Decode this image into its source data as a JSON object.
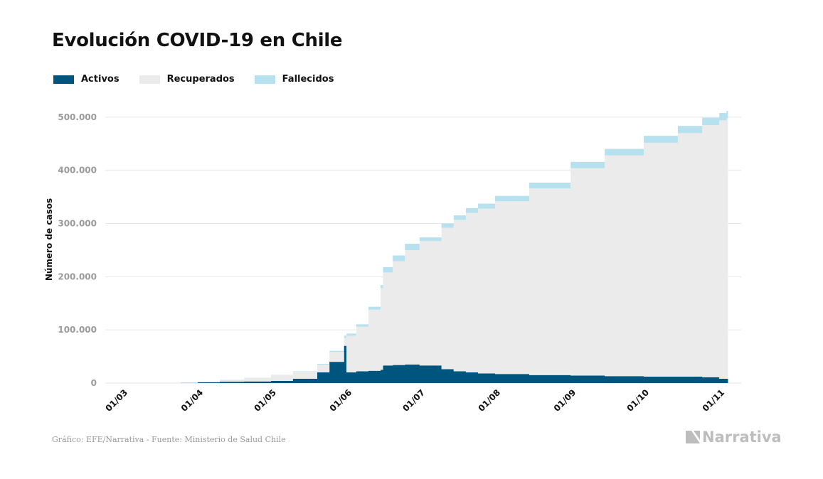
{
  "title": "Evolución COVID-19 en Chile",
  "footer": "Gráfico: EFE/Narrativa - Fuente: Ministerio de Salud Chile",
  "brand": "Narrativa",
  "legend": [
    {
      "label": "Activos",
      "color": "#00557f"
    },
    {
      "label": "Recuperados",
      "color": "#ebebeb"
    },
    {
      "label": "Fallecidos",
      "color": "#b7e1ef"
    }
  ],
  "chart_data": {
    "type": "area",
    "stacked": true,
    "ylabel": "Número de casos",
    "ylim": [
      0,
      540000
    ],
    "yticks": [
      0,
      100000,
      200000,
      300000,
      400000,
      500000
    ],
    "ytick_labels": [
      "0",
      "100.000",
      "200.000",
      "300.000",
      "400.000",
      "500.000"
    ],
    "xticks": [
      "01/03",
      "01/04",
      "01/05",
      "01/06",
      "01/07",
      "01/08",
      "01/09",
      "01/10",
      "01/11"
    ],
    "grid": "horizontal",
    "x": [
      "2020-03-01",
      "2020-03-25",
      "2020-04-01",
      "2020-04-10",
      "2020-04-20",
      "2020-05-01",
      "2020-05-10",
      "2020-05-20",
      "2020-05-25",
      "2020-05-31",
      "2020-06-01",
      "2020-06-05",
      "2020-06-10",
      "2020-06-15",
      "2020-06-16",
      "2020-06-20",
      "2020-06-25",
      "2020-07-01",
      "2020-07-10",
      "2020-07-15",
      "2020-07-20",
      "2020-07-25",
      "2020-08-01",
      "2020-08-15",
      "2020-09-01",
      "2020-09-15",
      "2020-10-01",
      "2020-10-15",
      "2020-10-25",
      "2020-11-01",
      "2020-11-04"
    ],
    "series": [
      {
        "name": "Activos",
        "color": "#00557f",
        "values": [
          0,
          300,
          1500,
          2500,
          3000,
          4000,
          8000,
          20000,
          40000,
          70000,
          20000,
          22000,
          23000,
          25000,
          33000,
          34000,
          35000,
          33000,
          26000,
          22000,
          20000,
          18000,
          17000,
          15000,
          14000,
          13000,
          12000,
          12000,
          11000,
          8000,
          8000
        ]
      },
      {
        "name": "Recuperados",
        "color": "#ebebeb",
        "values": [
          0,
          200,
          1200,
          3300,
          6700,
          10900,
          13200,
          14800,
          18500,
          15000,
          69000,
          84000,
          115000,
          153500,
          175000,
          195000,
          215000,
          234000,
          266000,
          285000,
          300000,
          310000,
          325000,
          351000,
          390000,
          415000,
          440000,
          458000,
          474000,
          486000,
          490000
        ]
      },
      {
        "name": "Fallecidos",
        "color": "#b7e1ef",
        "values": [
          0,
          0,
          100,
          300,
          400,
          500,
          800,
          1300,
          2000,
          4000,
          4000,
          4500,
          5500,
          6000,
          10000,
          11000,
          12000,
          7000,
          8000,
          8500,
          9000,
          9500,
          10000,
          11000,
          12000,
          12500,
          13000,
          13500,
          14000,
          14000,
          14000
        ]
      }
    ]
  }
}
